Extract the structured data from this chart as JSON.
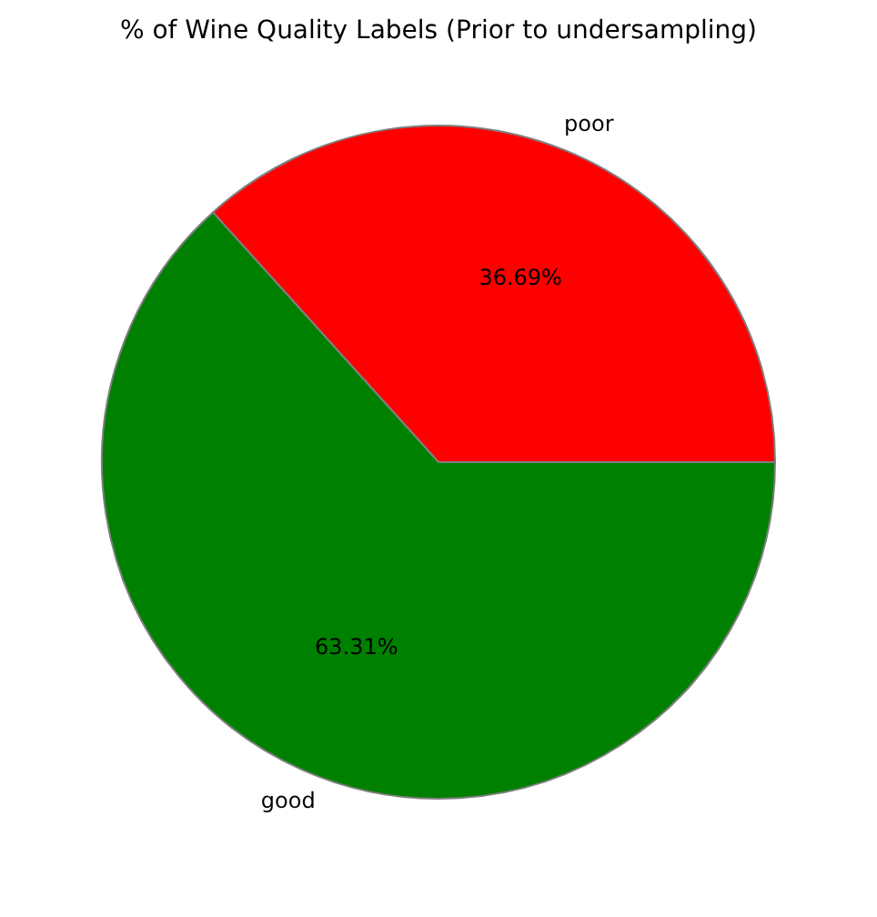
{
  "chart_data": {
    "type": "pie",
    "title": "% of Wine Quality Labels (Prior to undersampling)",
    "categories": [
      "poor",
      "good"
    ],
    "values": [
      36.69,
      63.31
    ],
    "colors": [
      "#ff0000",
      "#008000"
    ],
    "value_labels": [
      "36.69%",
      "63.31%"
    ],
    "legend": false
  }
}
